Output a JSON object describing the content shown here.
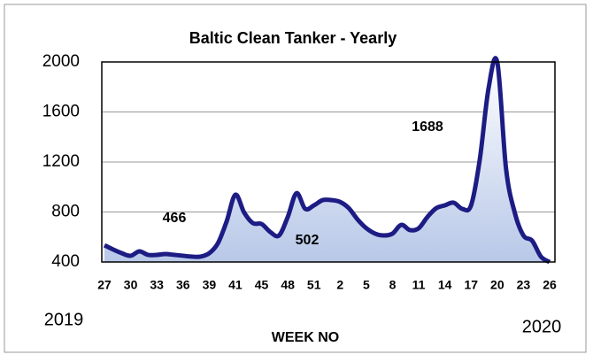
{
  "chart_data": {
    "type": "line",
    "title": "Baltic Clean Tanker - Yearly",
    "xlabel": "WEEK NO",
    "year_labels": [
      "2019",
      "2020"
    ],
    "annotations": [
      "466",
      "502",
      "1688"
    ],
    "categories": [
      "27",
      null,
      null,
      "30",
      null,
      null,
      "33",
      null,
      null,
      "36",
      null,
      null,
      "39",
      null,
      null,
      "41",
      null,
      null,
      "45",
      null,
      null,
      "48",
      null,
      null,
      "51",
      null,
      null,
      "2",
      null,
      null,
      "5",
      null,
      null,
      "8",
      null,
      null,
      "11",
      null,
      null,
      "14",
      null,
      null,
      "17",
      null,
      null,
      "20",
      null,
      null,
      "23",
      null,
      null,
      "26"
    ],
    "series": [
      {
        "name": "Baltic Clean Tanker",
        "color": "#1c1c84",
        "values": [
          534,
          500,
          470,
          450,
          485,
          457,
          457,
          464,
          457,
          450,
          443,
          443,
          470,
          550,
          725,
          938,
          796,
          711,
          704,
          640,
          612,
          760,
          950,
          825,
          853,
          895,
          895,
          880,
          830,
          740,
          670,
          627,
          612,
          627,
          697,
          655,
          670,
          760,
          830,
          853,
          875,
          825,
          853,
          1221,
          1788,
          2000,
          1150,
          796,
          612,
          570,
          443,
          400
        ]
      }
    ],
    "ylim": [
      400,
      2000
    ],
    "yticks": [
      400,
      800,
      1200,
      1600,
      2000
    ],
    "grid": true
  }
}
